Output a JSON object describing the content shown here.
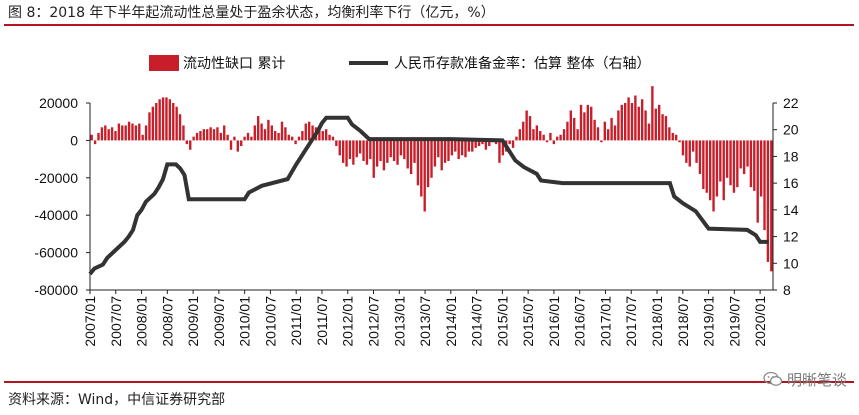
{
  "title": "图 8：2018 年下半年起流动性总量处于盈余状态，均衡利率下行（亿元，%）",
  "source": "资料来源：Wind，中信证券研究部",
  "watermark": "明晰笔谈",
  "colors": {
    "bar": "#c81e2a",
    "line": "#333333",
    "rule": "#b3141f"
  },
  "chart_data": {
    "type": "bar+line",
    "legend_position": "top",
    "grid": false,
    "x": {
      "start": "2007-01",
      "end": "2020-03",
      "tick_step_months": 6,
      "tick_labels": [
        "2007/01",
        "2007/07",
        "2008/01",
        "2008/07",
        "2009/01",
        "2009/07",
        "2010/01",
        "2010/07",
        "2011/01",
        "2011/07",
        "2012/01",
        "2012/07",
        "2013/01",
        "2013/07",
        "2014/01",
        "2014/07",
        "2015/01",
        "2015/07",
        "2016/01",
        "2016/07",
        "2017/01",
        "2017/07",
        "2018/01",
        "2018/07",
        "2019/01",
        "2019/07",
        "2020/01"
      ]
    },
    "y_left": {
      "ylim": [
        -80000,
        20000
      ],
      "ticks": [
        -80000,
        -60000,
        -40000,
        -20000,
        0,
        20000
      ],
      "tick_labels": [
        "-80000",
        "-60000",
        "-40000",
        "-20000",
        "0",
        "20000"
      ]
    },
    "y_right": {
      "ylim": [
        8,
        22
      ],
      "ticks": [
        8,
        10,
        12,
        14,
        16,
        18,
        20,
        22
      ],
      "tick_labels": [
        "8",
        "10",
        "12",
        "14",
        "16",
        "18",
        "20",
        "22"
      ]
    },
    "series": [
      {
        "name": "流动性缺口 累计",
        "type": "bar",
        "axis": "left",
        "values": [
          3000,
          -2000,
          4000,
          7000,
          8000,
          6000,
          7000,
          5000,
          9000,
          8000,
          8000,
          10000,
          9000,
          8000,
          9000,
          3000,
          8000,
          15000,
          18000,
          20000,
          22000,
          23000,
          23000,
          22000,
          20000,
          18000,
          14000,
          8000,
          -2000,
          -5000,
          2000,
          4000,
          5000,
          6000,
          6000,
          7000,
          6000,
          7000,
          4000,
          8000,
          3000,
          -5000,
          2000,
          -6000,
          -3000,
          2000,
          4000,
          2000,
          8000,
          13000,
          9000,
          6000,
          11000,
          8000,
          5000,
          4000,
          10000,
          7000,
          3000,
          2000,
          -2000,
          2000,
          5000,
          9000,
          10000,
          8000,
          7000,
          6000,
          5000,
          6000,
          3000,
          2000,
          -3000,
          -8000,
          -12000,
          -14000,
          -10000,
          -13000,
          -9000,
          -7000,
          -11000,
          -13000,
          -10000,
          -20000,
          -14000,
          -11000,
          -16000,
          -12000,
          -9000,
          -11000,
          -13000,
          -8000,
          -10000,
          -15000,
          -18000,
          -12000,
          -24000,
          -30000,
          -38000,
          -25000,
          -20000,
          -14000,
          -9000,
          -16000,
          -12000,
          -11000,
          -8000,
          -6000,
          -10000,
          -8000,
          -9000,
          -6000,
          -6000,
          -4000,
          -3000,
          -2000,
          -5000,
          -3000,
          -1000,
          -2000,
          -12000,
          -8000,
          -6000,
          -2000,
          -4000,
          2000,
          6000,
          10000,
          16000,
          13000,
          6000,
          8000,
          5000,
          3000,
          -1000,
          4000,
          -2000,
          2000,
          3000,
          6000,
          10000,
          16000,
          12000,
          6000,
          19000,
          15000,
          19000,
          18000,
          11000,
          7000,
          -1000,
          10000,
          6000,
          12000,
          8000,
          16000,
          19000,
          20000,
          23000,
          20000,
          24000,
          18000,
          22000,
          16000,
          9000,
          29000,
          17000,
          19000,
          14000,
          13000,
          7000,
          4000,
          3000,
          -1000,
          -8000,
          -12000,
          -14000,
          -6000,
          -12000,
          -18000,
          -26000,
          -28000,
          -32000,
          -38000,
          -30000,
          -22000,
          -32000,
          -20000,
          -24000,
          -28000,
          -25000,
          -15000,
          -18000,
          -14000,
          -25000,
          -27000,
          -44000,
          -30000,
          -48000,
          -65000,
          -70000
        ]
      },
      {
        "name": "人民币存款准备金率：估算 整体（右轴）",
        "type": "line",
        "axis": "right",
        "points": [
          [
            "2007-01",
            9.2
          ],
          [
            "2007-02",
            9.6
          ],
          [
            "2007-04",
            9.9
          ],
          [
            "2007-05",
            10.4
          ],
          [
            "2007-06",
            10.7
          ],
          [
            "2007-08",
            11.3
          ],
          [
            "2007-09",
            11.6
          ],
          [
            "2007-10",
            12.0
          ],
          [
            "2007-11",
            12.5
          ],
          [
            "2007-12",
            13.6
          ],
          [
            "2008-01",
            14.0
          ],
          [
            "2008-02",
            14.6
          ],
          [
            "2008-03",
            14.9
          ],
          [
            "2008-04",
            15.2
          ],
          [
            "2008-05",
            15.7
          ],
          [
            "2008-06",
            16.3
          ],
          [
            "2008-07",
            17.4
          ],
          [
            "2008-08",
            17.4
          ],
          [
            "2008-09",
            17.4
          ],
          [
            "2008-10",
            17.1
          ],
          [
            "2008-11",
            16.6
          ],
          [
            "2008-12",
            14.8
          ],
          [
            "2009-01",
            14.8
          ],
          [
            "2010-01",
            14.8
          ],
          [
            "2010-02",
            15.3
          ],
          [
            "2010-05",
            15.8
          ],
          [
            "2010-11",
            16.3
          ],
          [
            "2011-01",
            17.4
          ],
          [
            "2011-02",
            17.9
          ],
          [
            "2011-03",
            18.4
          ],
          [
            "2011-04",
            18.9
          ],
          [
            "2011-05",
            19.4
          ],
          [
            "2011-06",
            19.9
          ],
          [
            "2011-07",
            20.5
          ],
          [
            "2011-08",
            20.9
          ],
          [
            "2011-09",
            20.9
          ],
          [
            "2012-01",
            20.9
          ],
          [
            "2012-02",
            20.4
          ],
          [
            "2012-04",
            19.9
          ],
          [
            "2012-06",
            19.3
          ],
          [
            "2014-01",
            19.3
          ],
          [
            "2015-01",
            19.2
          ],
          [
            "2015-02",
            18.7
          ],
          [
            "2015-04",
            17.7
          ],
          [
            "2015-06",
            17.2
          ],
          [
            "2015-09",
            16.7
          ],
          [
            "2015-10",
            16.2
          ],
          [
            "2016-03",
            16.0
          ],
          [
            "2018-04",
            16.0
          ],
          [
            "2018-05",
            15.0
          ],
          [
            "2018-07",
            14.5
          ],
          [
            "2018-10",
            13.9
          ],
          [
            "2019-01",
            12.6
          ],
          [
            "2019-10",
            12.5
          ],
          [
            "2019-12",
            12.1
          ],
          [
            "2020-01",
            11.6
          ],
          [
            "2020-03",
            11.6
          ]
        ]
      }
    ]
  }
}
